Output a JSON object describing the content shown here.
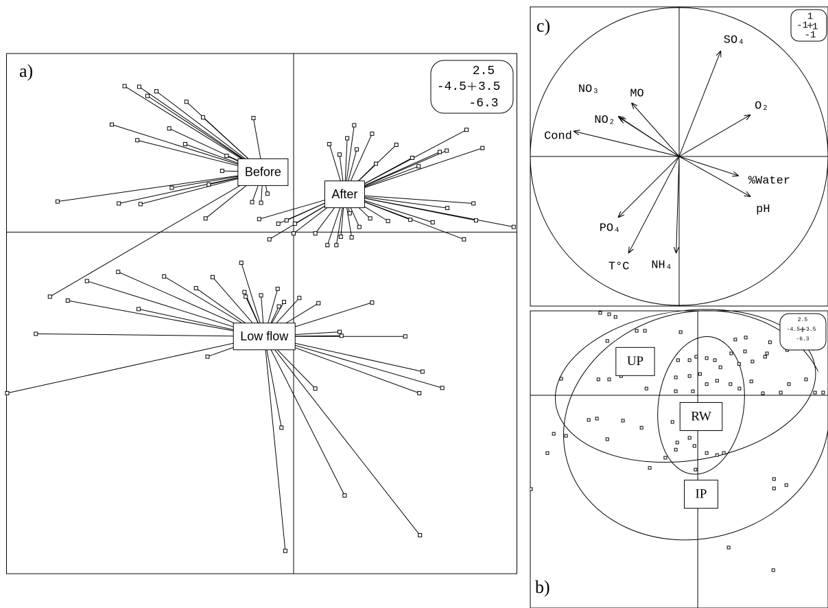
{
  "chart_data": [
    {
      "type": "star",
      "label": "a)",
      "xlim": [
        -4.5,
        3.5
      ],
      "ylim": [
        -5.24,
        2.74
      ],
      "scale_box": {
        "top": 2.5,
        "left": -4.5,
        "right": 3.5,
        "bottom": -6.3
      },
      "groups": [
        {
          "name": "Before",
          "x": -0.48,
          "y": 0.92,
          "points_x": [
            -2.65,
            -2.42,
            -2.29,
            -2.15,
            -1.68,
            -1.42,
            -0.63,
            -2.85,
            -1.95,
            -2.45,
            -1.7,
            -1.05,
            -1.12,
            -1.33,
            -3.7,
            -2.74,
            -2.4,
            -1.91,
            -1.38,
            -0.65,
            -0.51,
            -0.41,
            -3.82
          ],
          "points_y": [
            2.24,
            2.23,
            2.09,
            2.16,
            2.0,
            1.76,
            1.75,
            1.65,
            1.59,
            1.41,
            1.35,
            1.17,
            0.94,
            0.73,
            0.47,
            0.44,
            0.43,
            0.68,
            0.21,
            0.46,
            0.45,
            0.59,
            -0.99
          ]
        },
        {
          "name": "After",
          "x": 0.8,
          "y": 0.58,
          "points_x": [
            2.71,
            2.96,
            2.4,
            2.29,
            1.61,
            1.23,
            0.95,
            0.84,
            0.99,
            0.56,
            0.72,
            1.86,
            1.96,
            1.29,
            2.82,
            2.41,
            3.45,
            2.86,
            2.67,
            2.18,
            1.83,
            1.48,
            1.2,
            1.03,
            0.88,
            0.91,
            0.74,
            0.67,
            0.53,
            0.34,
            0.02,
            0.0,
            -0.11,
            -0.24,
            -0.38,
            -0.54
          ],
          "points_y": [
            1.57,
            1.29,
            1.25,
            1.23,
            1.34,
            1.51,
            1.64,
            1.44,
            1.27,
            1.35,
            1.19,
            1.14,
            1.01,
            1.05,
            0.44,
            0.37,
            0.08,
            0.18,
            -0.11,
            0.15,
            0.19,
            0.17,
            0.21,
            0.08,
            0.29,
            -0.08,
            -0.07,
            -0.2,
            -0.2,
            -0.02,
            0.13,
            -0.02,
            0.18,
            0.13,
            -0.11,
            0.2
          ]
        },
        {
          "name": "Low flow",
          "x": -0.46,
          "y": -1.6,
          "points_x": [
            -4.04,
            -3.54,
            -3.24,
            -2.75,
            -2.43,
            -2.03,
            -1.53,
            -1.27,
            -0.82,
            -0.77,
            -0.75,
            -0.51,
            -0.25,
            -0.23,
            -0.15,
            0.09,
            0.39,
            1.23,
            1.75,
            0.72,
            0.75,
            -1.35,
            2.33,
            2.02,
            1.97,
            0.34,
            -0.19,
            0.8,
            1.98,
            -0.13,
            -4.49
          ],
          "points_y": [
            -1.56,
            -1.05,
            -0.75,
            -0.61,
            -1.18,
            -0.68,
            -0.86,
            -0.69,
            -0.47,
            -0.92,
            -0.99,
            -0.97,
            -0.87,
            -1.14,
            -1.07,
            -1.01,
            -1.09,
            -1.08,
            -1.6,
            -1.53,
            -1.59,
            -1.91,
            -2.39,
            -2.14,
            -2.47,
            -2.4,
            -3.0,
            -4.04,
            -4.65,
            -4.89,
            -2.47
          ]
        }
      ]
    },
    {
      "type": "correlation-circle",
      "label": "c)",
      "xlim": [
        -1,
        1
      ],
      "ylim": [
        -1,
        1
      ],
      "scale_box": {
        "top": 1,
        "left": -1,
        "right": 1,
        "bottom": -1
      },
      "variables": [
        {
          "name": "SO₄",
          "x": 0.28,
          "y": 0.71
        },
        {
          "name": "O₂",
          "x": 0.48,
          "y": 0.28
        },
        {
          "name": "%Water",
          "x": 0.4,
          "y": -0.13
        },
        {
          "name": "pH",
          "x": 0.48,
          "y": -0.27
        },
        {
          "name": "NH₄",
          "x": -0.02,
          "y": -0.65
        },
        {
          "name": "T°C",
          "x": -0.34,
          "y": -0.65
        },
        {
          "name": "PO₄",
          "x": -0.41,
          "y": -0.41
        },
        {
          "name": "Cond",
          "x": -0.71,
          "y": 0.17
        },
        {
          "name": "NO₂",
          "x": -0.41,
          "y": 0.27
        },
        {
          "name": "NO₃",
          "x": -0.4,
          "y": 0.26
        },
        {
          "name": "MO",
          "x": -0.32,
          "y": 0.36
        }
      ]
    },
    {
      "type": "class-scatter",
      "label": "b)",
      "xlim": [
        -4.5,
        3.5
      ],
      "ylim": [
        -6.3,
        2.5
      ],
      "scale_box": {
        "top": 2.5,
        "left": -4.5,
        "right": 3.5,
        "bottom": -6.3
      },
      "points_x": [
        -2.62,
        -2.38,
        -2.21,
        -1.64,
        -1.42,
        -0.46,
        -2.43,
        1.01,
        1.29,
        1.94,
        2.4,
        1.86,
        1.27,
        0.9,
        0.46,
        0.24,
        -0.04,
        -0.22,
        -0.53,
        0.61,
        1.11,
        1.47,
        1.81,
        3.1,
        -3.67,
        -2.67,
        -2.38,
        -2.06,
        -0.59,
        -0.22,
        0.06,
        0.24,
        0.52,
        0.88,
        1.12,
        1.44,
        1.75,
        2.23,
        2.45,
        2.91,
        3.15,
        -1.38,
        -0.59,
        -0.13,
        -0.31,
        -0.37,
        -0.68,
        -0.31,
        -0.22,
        -0.09,
        -0.55,
        0.24,
        0.52,
        0.7,
        -0.06,
        -0.87,
        -1.29,
        -0.59,
        -2.01,
        -1.51,
        -2.71,
        -2.43,
        -3.54,
        -3.87,
        -4.04,
        -2.93,
        -4.48,
        2.05,
        2.05,
        2.38,
        0.83,
        2.03,
        3.37
      ],
      "points_y": [
        2.44,
        2.4,
        2.32,
        1.91,
        1.91,
        1.87,
        1.61,
        1.65,
        1.71,
        1.57,
        1.34,
        1.24,
        1.3,
        1.24,
        1.04,
        1.1,
        1.14,
        1.04,
        1.04,
        0.83,
        0.93,
        1.0,
        1.14,
        1.38,
        0.49,
        0.47,
        0.47,
        0.57,
        0.53,
        0.57,
        0.63,
        0.33,
        0.43,
        0.33,
        0.2,
        0.41,
        0.06,
        0.08,
        0.33,
        0.47,
        0.08,
        0.2,
        0.12,
        0.12,
        -0.28,
        -0.59,
        -0.79,
        -1.0,
        -1.26,
        -1.5,
        -1.4,
        -1.71,
        -1.77,
        -1.71,
        -2.2,
        -1.85,
        -2.15,
        -1.61,
        -0.75,
        -0.96,
        -0.69,
        -1.3,
        -1.2,
        -1.14,
        -1.71,
        -0.73,
        -2.78,
        -2.48,
        -2.76,
        -2.66,
        -4.51,
        -5.18,
        0.08
      ],
      "groups": [
        {
          "name": "UP",
          "x": -1.68,
          "y": 1.0,
          "ellipse": {
            "cx": -0.33,
            "cy": 0.28,
            "rx": 3.52,
            "ry": 2.22,
            "angle": 8
          }
        },
        {
          "name": "RW",
          "x": 0.09,
          "y": -0.63,
          "ellipse": {
            "cx": 0.09,
            "cy": -0.3,
            "rx": 1.15,
            "ry": 2.05,
            "angle": -8
          }
        },
        {
          "name": "IP",
          "x": 0.09,
          "y": -2.93,
          "ellipse": {
            "cx": -0.04,
            "cy": -0.89,
            "rx": 3.6,
            "ry": 3.35,
            "angle": 15
          }
        }
      ]
    }
  ]
}
